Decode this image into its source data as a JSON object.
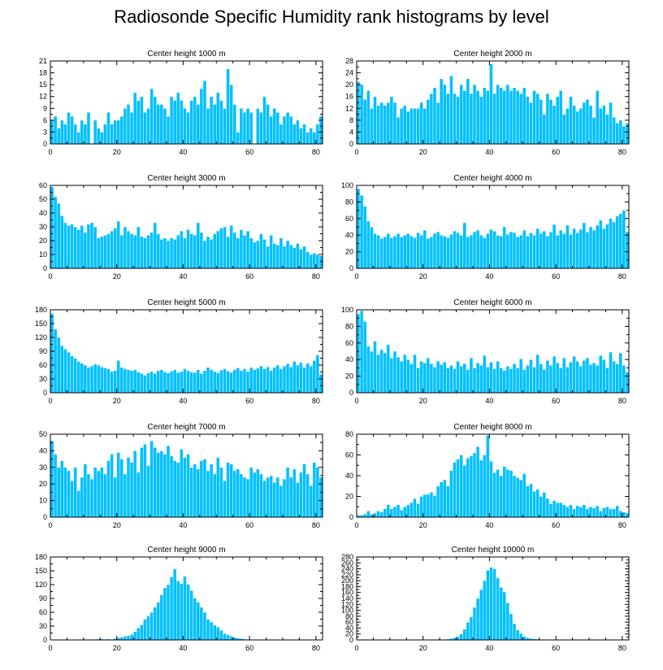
{
  "title": "Radiosonde Specific Humidity rank histograms by level",
  "colors": {
    "bar": "#00c0ff",
    "bar_edge": "#ffffff",
    "axis": "#000000"
  },
  "chart_data": [
    {
      "type": "bar",
      "title": "Center height 1000 m",
      "xlim": [
        0,
        82
      ],
      "xticks": [
        0,
        20,
        40,
        60,
        80
      ],
      "ylim": [
        0,
        21
      ],
      "yticks": [
        0,
        3,
        6,
        9,
        12,
        15,
        18,
        21
      ],
      "values": [
        6,
        7,
        4,
        6,
        5,
        8,
        7,
        5,
        3,
        6,
        5,
        8,
        0,
        6,
        4,
        3,
        5,
        8,
        5,
        6,
        6,
        7,
        9,
        10,
        8,
        13,
        11,
        12,
        8,
        9,
        14,
        12,
        10,
        10,
        9,
        7,
        12,
        11,
        13,
        11,
        9,
        8,
        11,
        12,
        10,
        14,
        16,
        9,
        12,
        10,
        13,
        11,
        9,
        19,
        15,
        10,
        3,
        9,
        8,
        9,
        8,
        0,
        9,
        8,
        12,
        10,
        7,
        9,
        8,
        5,
        7,
        8,
        7,
        5,
        6,
        4,
        5,
        3,
        4,
        3,
        5,
        7
      ]
    },
    {
      "type": "bar",
      "title": "Center height 2000 m",
      "xlim": [
        0,
        82
      ],
      "xticks": [
        0,
        20,
        40,
        60,
        80
      ],
      "ylim": [
        0,
        28
      ],
      "yticks": [
        0,
        4,
        8,
        12,
        16,
        20,
        24,
        28
      ],
      "values": [
        21,
        20,
        15,
        18,
        12,
        16,
        13,
        14,
        13,
        14,
        16,
        14,
        9,
        12,
        13,
        11,
        12,
        12,
        12,
        14,
        12,
        15,
        17,
        19,
        14,
        22,
        20,
        17,
        23,
        17,
        16,
        20,
        18,
        22,
        17,
        20,
        18,
        16,
        19,
        18,
        27,
        17,
        20,
        19,
        18,
        20,
        18,
        19,
        18,
        17,
        19,
        16,
        14,
        18,
        17,
        15,
        10,
        17,
        15,
        13,
        16,
        18,
        10,
        12,
        16,
        13,
        11,
        12,
        14,
        15,
        13,
        9,
        18,
        12,
        13,
        10,
        14,
        9,
        7,
        8,
        6,
        7
      ]
    },
    {
      "type": "bar",
      "title": "Center height 3000 m",
      "xlim": [
        0,
        82
      ],
      "xticks": [
        0,
        20,
        40,
        60,
        80
      ],
      "ylim": [
        0,
        60
      ],
      "yticks": [
        0,
        10,
        20,
        30,
        40,
        50,
        60
      ],
      "values": [
        59,
        52,
        47,
        38,
        33,
        31,
        32,
        30,
        28,
        31,
        26,
        32,
        33,
        30,
        22,
        23,
        24,
        25,
        27,
        29,
        34,
        24,
        30,
        27,
        25,
        24,
        30,
        23,
        22,
        24,
        26,
        33,
        25,
        21,
        22,
        20,
        22,
        21,
        24,
        27,
        22,
        28,
        25,
        24,
        33,
        26,
        20,
        23,
        21,
        25,
        27,
        29,
        30,
        23,
        31,
        26,
        22,
        28,
        24,
        27,
        22,
        19,
        20,
        25,
        21,
        16,
        24,
        18,
        17,
        22,
        16,
        20,
        17,
        15,
        18,
        14,
        16,
        12,
        10,
        11,
        10,
        9
      ]
    },
    {
      "type": "bar",
      "title": "Center height 4000 m",
      "xlim": [
        0,
        82
      ],
      "xticks": [
        0,
        20,
        40,
        60,
        80
      ],
      "ylim": [
        0,
        100
      ],
      "yticks": [
        0,
        20,
        40,
        60,
        80,
        100
      ],
      "values": [
        96,
        88,
        75,
        57,
        50,
        42,
        40,
        36,
        38,
        42,
        37,
        39,
        42,
        38,
        40,
        42,
        39,
        37,
        43,
        40,
        46,
        36,
        38,
        42,
        44,
        40,
        39,
        37,
        41,
        45,
        43,
        40,
        55,
        38,
        40,
        44,
        46,
        40,
        37,
        42,
        47,
        45,
        40,
        39,
        50,
        41,
        44,
        43,
        38,
        40,
        46,
        39,
        43,
        40,
        48,
        42,
        45,
        39,
        44,
        53,
        40,
        46,
        42,
        52,
        41,
        48,
        43,
        47,
        55,
        44,
        50,
        46,
        52,
        58,
        48,
        53,
        60,
        56,
        63,
        66,
        70,
        44
      ]
    },
    {
      "type": "bar",
      "title": "Center height 5000 m",
      "xlim": [
        0,
        82
      ],
      "xticks": [
        0,
        20,
        40,
        60,
        80
      ],
      "ylim": [
        0,
        180
      ],
      "yticks": [
        0,
        30,
        60,
        90,
        120,
        150,
        180
      ],
      "values": [
        172,
        138,
        120,
        102,
        95,
        88,
        80,
        75,
        68,
        64,
        60,
        55,
        58,
        62,
        60,
        56,
        54,
        52,
        46,
        48,
        70,
        55,
        52,
        50,
        48,
        50,
        45,
        42,
        38,
        43,
        46,
        42,
        48,
        50,
        45,
        43,
        47,
        50,
        44,
        46,
        52,
        48,
        45,
        44,
        50,
        42,
        48,
        55,
        50,
        46,
        43,
        49,
        52,
        47,
        44,
        50,
        54,
        48,
        52,
        46,
        55,
        50,
        53,
        58,
        52,
        56,
        48,
        55,
        60,
        52,
        58,
        63,
        56,
        68,
        60,
        66,
        55,
        64,
        58,
        70,
        82,
        40
      ]
    },
    {
      "type": "bar",
      "title": "Center height 6000 m",
      "xlim": [
        0,
        82
      ],
      "xticks": [
        0,
        20,
        40,
        60,
        80
      ],
      "ylim": [
        0,
        100
      ],
      "yticks": [
        0,
        20,
        40,
        60,
        80,
        100
      ],
      "values": [
        95,
        99,
        86,
        56,
        50,
        62,
        46,
        52,
        48,
        58,
        42,
        50,
        43,
        38,
        46,
        40,
        35,
        46,
        30,
        38,
        36,
        42,
        35,
        31,
        38,
        34,
        37,
        30,
        33,
        29,
        38,
        32,
        35,
        28,
        42,
        30,
        36,
        33,
        45,
        31,
        37,
        29,
        38,
        30,
        27,
        32,
        29,
        35,
        30,
        41,
        28,
        33,
        40,
        31,
        46,
        35,
        28,
        39,
        33,
        44,
        36,
        30,
        42,
        31,
        37,
        44,
        38,
        32,
        39,
        42,
        34,
        36,
        33,
        45,
        40,
        30,
        49,
        38,
        35,
        48,
        33,
        25
      ]
    },
    {
      "type": "bar",
      "title": "Center height 7000 m",
      "xlim": [
        0,
        82
      ],
      "xticks": [
        0,
        20,
        40,
        60,
        80
      ],
      "ylim": [
        0,
        50
      ],
      "yticks": [
        0,
        10,
        20,
        30,
        40,
        50
      ],
      "values": [
        46,
        38,
        30,
        34,
        30,
        28,
        22,
        30,
        16,
        24,
        32,
        26,
        23,
        30,
        28,
        30,
        26,
        34,
        38,
        24,
        39,
        35,
        26,
        36,
        33,
        40,
        27,
        42,
        44,
        31,
        46,
        42,
        39,
        40,
        38,
        43,
        37,
        34,
        33,
        41,
        36,
        38,
        30,
        32,
        29,
        34,
        35,
        28,
        32,
        26,
        36,
        30,
        22,
        33,
        32,
        28,
        29,
        26,
        24,
        23,
        30,
        27,
        29,
        26,
        22,
        24,
        25,
        21,
        24,
        19,
        23,
        30,
        24,
        29,
        21,
        27,
        32,
        26,
        19,
        33,
        30,
        24
      ]
    },
    {
      "type": "bar",
      "title": "Center height 8000 m",
      "xlim": [
        0,
        82
      ],
      "xticks": [
        0,
        20,
        40,
        60,
        80
      ],
      "ylim": [
        0,
        80
      ],
      "yticks": [
        0,
        20,
        40,
        60,
        80
      ],
      "values": [
        2,
        2,
        3,
        6,
        3,
        4,
        6,
        5,
        8,
        12,
        8,
        10,
        12,
        7,
        10,
        12,
        14,
        18,
        13,
        20,
        22,
        22,
        24,
        21,
        30,
        34,
        36,
        30,
        45,
        53,
        56,
        60,
        50,
        57,
        59,
        62,
        68,
        55,
        60,
        79,
        54,
        43,
        46,
        40,
        49,
        46,
        45,
        40,
        38,
        36,
        42,
        30,
        32,
        25,
        27,
        20,
        24,
        18,
        13,
        16,
        14,
        14,
        12,
        10,
        12,
        8,
        11,
        10,
        12,
        8,
        10,
        9,
        11,
        6,
        9,
        10,
        8,
        8,
        11,
        6,
        5,
        4
      ]
    },
    {
      "type": "bar",
      "title": "Center height 9000 m",
      "xlim": [
        0,
        82
      ],
      "xticks": [
        0,
        20,
        40,
        60,
        80
      ],
      "ylim": [
        0,
        180
      ],
      "yticks": [
        0,
        30,
        60,
        90,
        120,
        150,
        180
      ],
      "values": [
        0,
        0,
        0,
        0,
        0,
        0,
        0,
        0,
        0,
        0,
        0,
        0,
        1,
        1,
        2,
        2,
        1,
        2,
        1,
        3,
        5,
        6,
        8,
        9,
        12,
        18,
        26,
        33,
        45,
        52,
        60,
        71,
        82,
        98,
        113,
        120,
        137,
        154,
        128,
        122,
        138,
        121,
        107,
        91,
        82,
        71,
        60,
        45,
        39,
        32,
        28,
        21,
        14,
        11,
        8,
        6,
        4,
        3,
        2,
        1,
        1,
        1,
        0,
        0,
        0,
        0,
        0,
        0,
        0,
        0,
        0,
        0,
        0,
        0,
        0,
        0,
        0,
        0,
        0,
        0,
        0,
        0
      ]
    },
    {
      "type": "bar",
      "title": "Center height 10000 m",
      "xlim": [
        0,
        82
      ],
      "xticks": [
        0,
        20,
        40,
        60,
        80
      ],
      "ylim": [
        0,
        280
      ],
      "yticks": [
        0,
        20,
        40,
        60,
        80,
        100,
        120,
        140,
        160,
        180,
        200,
        220,
        240,
        260,
        280
      ],
      "values": [
        0,
        0,
        0,
        0,
        0,
        0,
        0,
        0,
        0,
        0,
        0,
        0,
        0,
        0,
        0,
        0,
        0,
        0,
        0,
        0,
        0,
        0,
        0,
        0,
        0,
        1,
        2,
        3,
        5,
        8,
        12,
        20,
        36,
        60,
        78,
        110,
        140,
        170,
        200,
        235,
        245,
        240,
        210,
        178,
        162,
        125,
        88,
        55,
        34,
        22,
        12,
        8,
        5,
        4,
        3,
        2,
        1,
        1,
        0,
        0,
        0,
        0,
        0,
        0,
        0,
        0,
        0,
        0,
        0,
        0,
        0,
        0,
        0,
        0,
        0,
        0,
        0,
        0,
        0,
        0,
        0,
        0
      ]
    }
  ]
}
